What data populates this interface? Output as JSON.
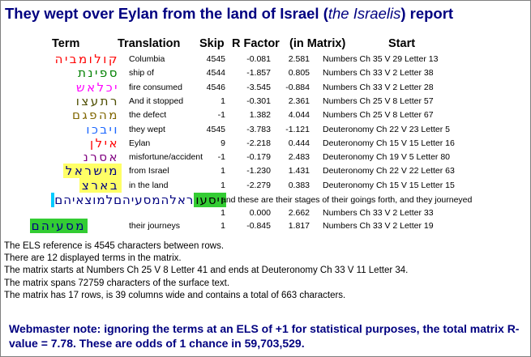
{
  "title": {
    "prefix": "They wept over Eylan from the land of Israel (",
    "italic": "the Israelis",
    "suffix": ") report"
  },
  "headers": {
    "term": "Term",
    "translation": "Translation",
    "skip": "Skip",
    "rfactor": "R Factor",
    "in_matrix": "(in Matrix)",
    "start": "Start"
  },
  "rows": [
    {
      "hebrew": "קולומביה",
      "color": "#ff0000",
      "translation": "Columbia",
      "skip": "4545",
      "r1": "-0.081",
      "r2": "2.581",
      "start": "Numbers Ch 35 V 29 Letter 13"
    },
    {
      "hebrew": "ספינת",
      "color": "#008000",
      "translation": "ship of",
      "skip": "4544",
      "r1": "-1.857",
      "r2": "0.805",
      "start": "Numbers Ch 33 V 2 Letter 38"
    },
    {
      "hebrew": "יכלאש",
      "color": "#ff00ff",
      "translation": "fire consumed",
      "skip": "4546",
      "r1": "-3.545",
      "r2": "-0.884",
      "start": "Numbers Ch 33 V 2 Letter 28"
    },
    {
      "hebrew": "רתעצו",
      "color": "#4d4d00",
      "translation": "And it stopped",
      "skip": "1",
      "r1": "-0.301",
      "r2": "2.361",
      "start": "Numbers Ch 25 V 8 Letter 57"
    },
    {
      "hebrew": "מהפגם",
      "color": "#806600",
      "translation": "the defect",
      "skip": "-1",
      "r1": "1.382",
      "r2": "4.044",
      "start": "Numbers Ch 25 V 8 Letter 67"
    },
    {
      "hebrew": "ויבכו",
      "color": "#1a66ff",
      "translation": "they wept",
      "skip": "4545",
      "r1": "-3.783",
      "r2": "-1.121",
      "start": "Deuteronomy Ch 22 V 23 Letter 5"
    },
    {
      "hebrew": "אילן",
      "color": "#ff0000",
      "translation": "Eylan",
      "skip": "9",
      "r1": "-2.218",
      "r2": "0.444",
      "start": "Deuteronomy Ch 15 V 15 Letter 16"
    },
    {
      "hebrew": "אסרנ",
      "color": "#800080",
      "translation": "misfortune/accident",
      "skip": "-1",
      "r1": "-0.179",
      "r2": "2.483",
      "start": "Deuteronomy Ch 19 V 5 Letter 80"
    },
    {
      "hebrew": "מישראל",
      "color": "#000080",
      "bg": "#ffff66",
      "translation": "from Israel",
      "skip": "1",
      "r1": "-1.230",
      "r2": "1.431",
      "start": "Deuteronomy Ch 22 V 22 Letter 63"
    },
    {
      "hebrew": "בארצ",
      "color": "#000080",
      "bg": "#ffff66",
      "translation": "in the land",
      "skip": "1",
      "r1": "-2.279",
      "r2": "0.383",
      "start": "Deuteronomy Ch 15 V 15 Letter 15"
    }
  ],
  "long_row": {
    "hebrew_highlight": "ויסעו",
    "hebrew_rest": "ראלהמסעיהםלמוצאיהם",
    "translation": "and these are their stages of their goings forth, and they journeyed",
    "skip": "1",
    "r1": "0.000",
    "r2": "2.662",
    "start": "Numbers Ch 33 V 2 Letter 33"
  },
  "last_row": {
    "hebrew": "מסעיהם",
    "translation": "their journeys",
    "skip": "1",
    "r1": "-0.845",
    "r2": "1.817",
    "start": "Numbers Ch 33 V 2 Letter 19"
  },
  "colors": {
    "title": "#000080",
    "highlight_yellow": "#ffff66",
    "highlight_cyan": "#00ccff",
    "highlight_green": "#33cc33"
  },
  "notes": [
    "The ELS reference is 4545 characters between rows.",
    "There are 12 displayed terms in the matrix.",
    "The matrix starts at Numbers Ch 25 V 8 Letter 41 and ends at Deuteronomy Ch 33 V 11 Letter 34.",
    "The matrix spans 72759 characters of the surface text.",
    "The matrix has 17 rows, is 39 columns wide and contains a total of 663 characters."
  ],
  "webmaster_note": "Webmaster note: ignoring the terms at an ELS of +1 for statistical purposes, the total matrix R-value = 7.78. These are odds of 1 chance in 59,703,529."
}
